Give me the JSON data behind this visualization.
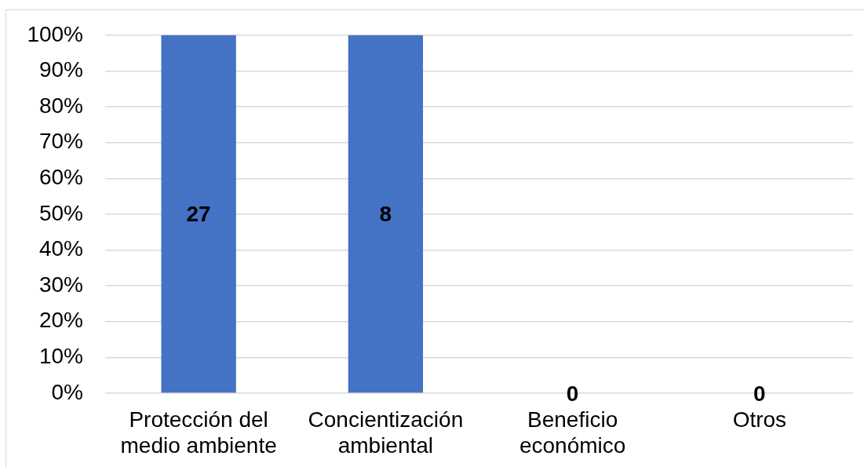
{
  "chart_data": {
    "type": "bar",
    "categories": [
      "Protección del medio ambiente",
      "Concientización ambiental",
      "Beneficio económico",
      "Otros"
    ],
    "values": [
      100,
      100,
      0,
      0
    ],
    "color": "#4472c4",
    "ylim": [
      0,
      100
    ],
    "yticks": [
      {
        "value": 0,
        "label": "0%"
      },
      {
        "value": 10,
        "label": "10%"
      },
      {
        "value": 20,
        "label": "20%"
      },
      {
        "value": 30,
        "label": "30%"
      },
      {
        "value": 40,
        "label": "40%"
      },
      {
        "value": 50,
        "label": "50%"
      },
      {
        "value": 60,
        "label": "60%"
      },
      {
        "value": 70,
        "label": "70%"
      },
      {
        "value": 80,
        "label": "80%"
      },
      {
        "value": 90,
        "label": "90%"
      },
      {
        "value": 100,
        "label": "100%"
      }
    ],
    "annotations": [
      "27",
      "8",
      "0",
      "0"
    ],
    "grid": "y"
  }
}
